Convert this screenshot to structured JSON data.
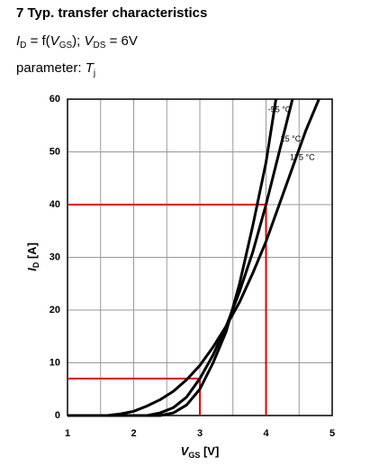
{
  "chart_data": {
    "type": "line",
    "title": "7 Typ. transfer characteristics",
    "subtitle": {
      "i": "I",
      "i_sub": "D",
      "mid": " = f(",
      "v": "V",
      "v_sub": "GS",
      "sep": "); ",
      "v2": "V",
      "v2_sub": "DS",
      "end": " = 6V"
    },
    "parameter": {
      "text": "parameter: ",
      "t": "T",
      "t_sub": "j"
    },
    "x_label": {
      "main": "V",
      "sub": "GS",
      "unit": " [V]"
    },
    "y_label": {
      "main": "I",
      "sub": "D",
      "unit": " [A]"
    },
    "xlim": [
      1,
      5
    ],
    "xticks": [
      1,
      2,
      3,
      4,
      5
    ],
    "x_minor_grid": [
      1.5,
      2.5,
      3.5,
      4.5
    ],
    "ylim": [
      0,
      60
    ],
    "yticks": [
      0,
      10,
      20,
      30,
      40,
      50,
      60
    ],
    "grid": true,
    "series": [
      {
        "name": "-55 °C",
        "color": "#000000",
        "x": [
          1.0,
          2.4,
          2.6,
          2.8,
          3.0,
          3.2,
          3.4,
          3.6,
          3.8,
          4.0,
          4.15
        ],
        "values": [
          0,
          0,
          0.5,
          2,
          5,
          10,
          16,
          25,
          36,
          48,
          60
        ]
      },
      {
        "name": "25 °C",
        "color": "#000000",
        "x": [
          1.0,
          2.2,
          2.4,
          2.6,
          2.8,
          3.0,
          3.2,
          3.4,
          3.6,
          3.8,
          4.0,
          4.2,
          4.4
        ],
        "values": [
          0,
          0,
          0.5,
          1.5,
          3.5,
          7,
          11.5,
          17,
          23.5,
          31,
          40,
          50,
          60
        ]
      },
      {
        "name": "175 °C",
        "color": "#000000",
        "x": [
          1.0,
          1.6,
          1.8,
          2.0,
          2.2,
          2.4,
          2.6,
          2.8,
          3.0,
          3.2,
          3.4,
          3.6,
          3.8,
          4.0,
          4.2,
          4.4,
          4.6,
          4.8
        ],
        "values": [
          0,
          0,
          0.3,
          0.8,
          1.8,
          3,
          4.6,
          6.8,
          9.5,
          13,
          17,
          21.5,
          27,
          33,
          40,
          47,
          54,
          60
        ]
      }
    ],
    "reference_lines": [
      {
        "x": 3,
        "y": 7
      },
      {
        "x": 4,
        "y": 40
      }
    ],
    "reference_color": "#e00000"
  }
}
